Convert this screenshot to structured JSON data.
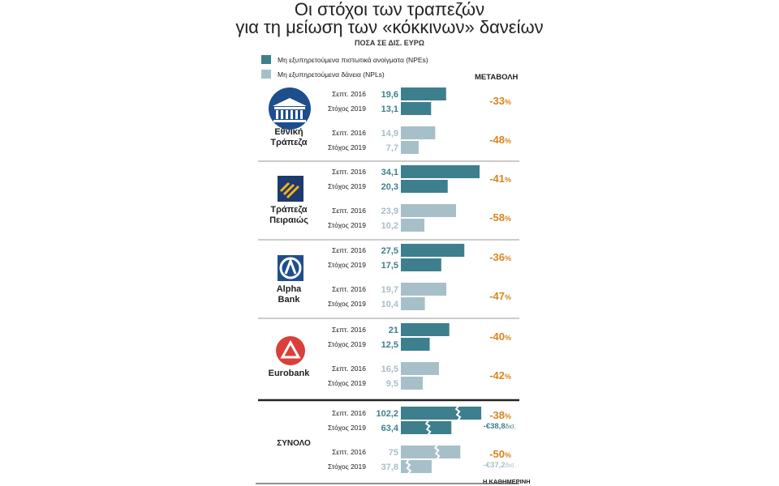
{
  "header": {
    "title_line1": "Οι στόχοι των τραπεζών",
    "title_line2": "για τη μείωση των «κόκκινων» δανείων",
    "subtitle": "ΠΟΣΑ ΣΕ ΔΙΣ. ΕΥΡΩ"
  },
  "legend": {
    "npe_label": "Μη εξυπηρετούμενα πιστωτικά ανοίγματα (NPEs)",
    "npl_label": "Μη εξυπηρετούμενα δάνεια (NPLs)",
    "change_header": "ΜΕΤΑΒΟΛΗ"
  },
  "colors": {
    "npe": "#3d7f8d",
    "npl": "#a7bfc8",
    "change": "#d9851f",
    "text": "#1a1a1a"
  },
  "banks": [
    {
      "name_line1": "Εθνική",
      "name_line2": "Τράπεζα",
      "logo": "nbg-building-logo"
    },
    {
      "name_line1": "Τράπεζα",
      "name_line2": "Πειραιώς",
      "logo": "piraeus-logo"
    },
    {
      "name_line1": "Alpha",
      "name_line2": "Bank",
      "logo": "alpha-logo"
    },
    {
      "name_line1": "Eurobank",
      "name_line2": "",
      "logo": "eurobank-logo"
    }
  ],
  "total_label": "ΣΥΝΟΛΟ",
  "credit": "Η ΚΑΘΗΜΕΡΙΝΗ",
  "chart_data": {
    "type": "bar",
    "orientation": "horizontal",
    "units": "δισ. ευρώ",
    "categories": [
      "Σεπτ. 2016",
      "Στόχος 2019"
    ],
    "groups": [
      {
        "bank": "Εθνική Τράπεζα",
        "npe": {
          "values": [
            19.6,
            13.1
          ],
          "labels": [
            "19,6",
            "13,1"
          ],
          "change": "-33"
        },
        "npl": {
          "values": [
            14.9,
            7.7
          ],
          "labels": [
            "14,9",
            "7,7"
          ],
          "change": "-48"
        }
      },
      {
        "bank": "Τράπεζα Πειραιώς",
        "npe": {
          "values": [
            34.1,
            20.3
          ],
          "labels": [
            "34,1",
            "20,3"
          ],
          "change": "-41"
        },
        "npl": {
          "values": [
            23.9,
            10.2
          ],
          "labels": [
            "23,9",
            "10,2"
          ],
          "change": "-58"
        }
      },
      {
        "bank": "Alpha Bank",
        "npe": {
          "values": [
            27.5,
            17.5
          ],
          "labels": [
            "27,5",
            "17,5"
          ],
          "change": "-36"
        },
        "npl": {
          "values": [
            19.7,
            10.4
          ],
          "labels": [
            "19,7",
            "10,4"
          ],
          "change": "-47"
        }
      },
      {
        "bank": "Eurobank",
        "npe": {
          "values": [
            21,
            12.5
          ],
          "labels": [
            "21",
            "12,5"
          ],
          "change": "-40"
        },
        "npl": {
          "values": [
            16.5,
            9.5
          ],
          "labels": [
            "16,5",
            "9,5"
          ],
          "change": "-42"
        }
      },
      {
        "bank": "ΣΥΝΟΛΟ",
        "npe": {
          "values": [
            102.2,
            63.4
          ],
          "labels": [
            "102,2",
            "63,4"
          ],
          "change": "-38",
          "abs_change": "-€38,8",
          "abs_unit": "δισ."
        },
        "npl": {
          "values": [
            75,
            37.8
          ],
          "labels": [
            "75",
            "37,8"
          ],
          "change": "-50",
          "abs_change": "-€37,2",
          "abs_unit": "δισ."
        },
        "broken_axis": true
      }
    ],
    "percent_sign": "%"
  }
}
